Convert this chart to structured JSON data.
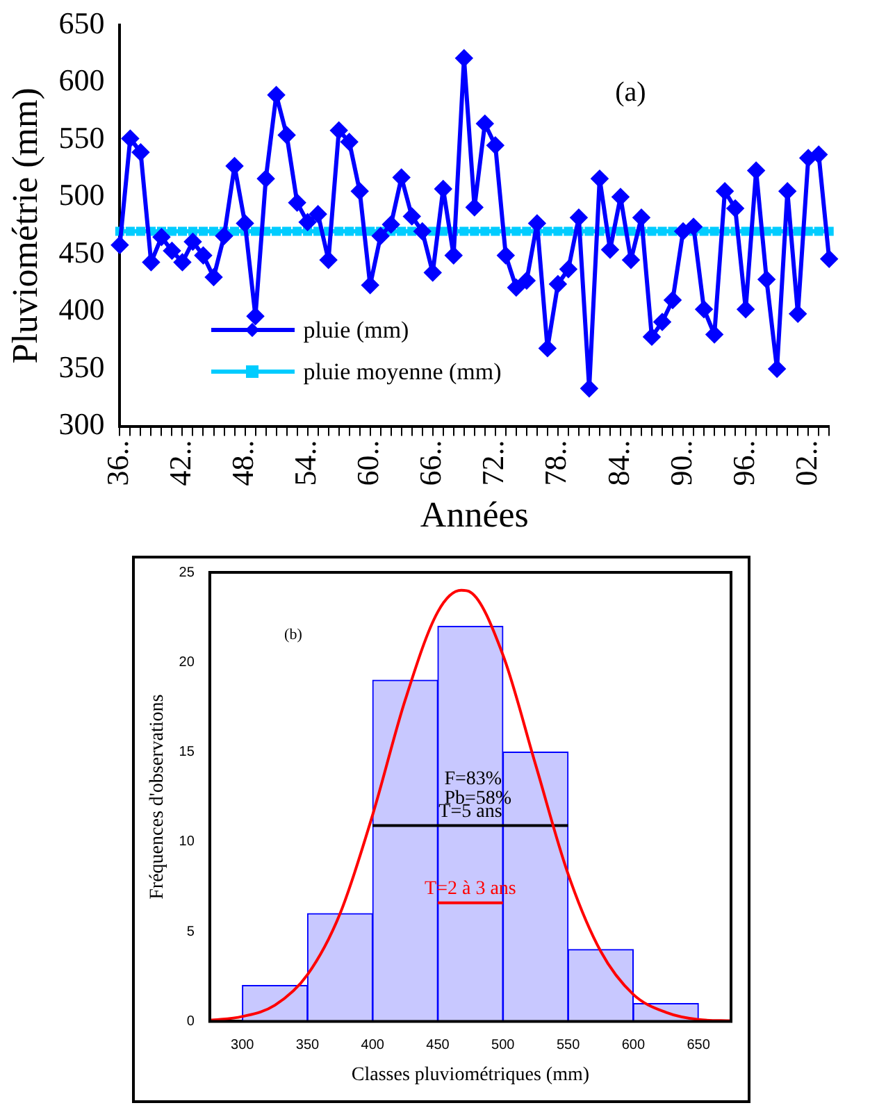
{
  "chart_data": [
    {
      "type": "line",
      "xlabel": "Années",
      "ylabel": "Pluviométrie (mm)",
      "categories": [
        "36..",
        null,
        null,
        null,
        null,
        null,
        "42..",
        null,
        null,
        null,
        null,
        null,
        "48..",
        null,
        null,
        null,
        null,
        null,
        "54..",
        null,
        null,
        null,
        null,
        null,
        "60..",
        null,
        null,
        null,
        null,
        null,
        "66..",
        null,
        null,
        null,
        null,
        null,
        "72..",
        null,
        null,
        null,
        null,
        null,
        "78..",
        null,
        null,
        null,
        null,
        null,
        "84..",
        null,
        null,
        null,
        null,
        null,
        "90..",
        null,
        null,
        null,
        null,
        null,
        "96..",
        null,
        null,
        null,
        null,
        null,
        "02..",
        null,
        null
      ],
      "series": [
        {
          "name": "pluie (mm)",
          "color": "#0000ff",
          "marker": "diamond",
          "values": [
            458,
            551,
            539,
            443,
            465,
            453,
            443,
            461,
            449,
            430,
            466,
            527,
            477,
            396,
            516,
            589,
            554,
            495,
            478,
            485,
            445,
            558,
            548,
            505,
            423,
            466,
            476,
            517,
            483,
            470,
            434,
            507,
            449,
            621,
            491,
            564,
            545,
            449,
            421,
            427,
            477,
            368,
            424,
            437,
            482,
            333,
            516,
            454,
            500,
            445,
            482,
            378,
            391,
            410,
            470,
            474,
            402,
            380,
            505,
            490,
            402,
            523,
            428,
            350,
            505,
            398,
            534,
            537,
            446
          ]
        },
        {
          "name": "pluie moyenne (mm)",
          "color": "#00ccff",
          "marker": "square",
          "values": [
            470,
            470,
            470,
            470,
            470,
            470,
            470,
            470,
            470,
            470,
            470,
            470,
            470,
            470,
            470,
            470,
            470,
            470,
            470,
            470,
            470,
            470,
            470,
            470,
            470,
            470,
            470,
            470,
            470,
            470,
            470,
            470,
            470,
            470,
            470,
            470,
            470,
            470,
            470,
            470,
            470,
            470,
            470,
            470,
            470,
            470,
            470,
            470,
            470,
            470,
            470,
            470,
            470,
            470,
            470,
            470,
            470,
            470,
            470,
            470,
            470,
            470,
            470,
            470,
            470,
            470,
            470,
            470,
            470
          ]
        }
      ],
      "ylim": [
        300,
        650
      ],
      "yticks": [
        300,
        350,
        400,
        450,
        500,
        550,
        600,
        650
      ],
      "legend": "bottom left",
      "grid": false,
      "annotations": [
        "(a)"
      ]
    },
    {
      "type": "histogram",
      "xlabel": "Classes pluviométriques (mm)",
      "ylabel": "Fréquences d'observations",
      "bins": [
        300,
        350,
        400,
        450,
        500,
        550,
        600,
        650
      ],
      "values": [
        2,
        6,
        19,
        22,
        15,
        4,
        1
      ],
      "color": "#c8c8ff",
      "series": [
        {
          "type": "line",
          "color": "#ff0000",
          "marker": "none",
          "x": [
            275,
            300,
            325,
            350,
            375,
            400,
            425,
            450,
            468,
            475,
            500,
            525,
            550,
            575,
            600,
            625,
            650,
            675
          ],
          "values": [
            0.06,
            0.27,
            0.9,
            2.6,
            6,
            11.5,
            17.9,
            22.8,
            24,
            23.9,
            20.4,
            14.3,
            8.2,
            3.9,
            1.5,
            0.5,
            0.1,
            0.03
          ]
        },
        {
          "type": "line",
          "name": "T=5 ans",
          "color": "#000000",
          "marker": "none",
          "x": [
            400,
            550
          ],
          "values": [
            10.9,
            10.9
          ]
        },
        {
          "type": "line",
          "name": "T=2 à 3 ans",
          "color": "#ff0000",
          "marker": "none",
          "x": [
            450,
            500
          ],
          "values": [
            6.6,
            6.6
          ]
        }
      ],
      "xlim": [
        275,
        675
      ],
      "xticks": [
        300,
        350,
        400,
        450,
        500,
        550,
        600,
        650
      ],
      "ylim": [
        0,
        25
      ],
      "yticks": [
        0,
        5,
        10,
        15,
        20,
        25
      ],
      "grid": false,
      "legend": false,
      "annotations": [
        "(b)",
        {
          "text": "F=83%",
          "x": 455,
          "y": 13.5
        },
        {
          "text": "Pb=58%",
          "x": 455,
          "y": 12.4
        }
      ]
    }
  ]
}
